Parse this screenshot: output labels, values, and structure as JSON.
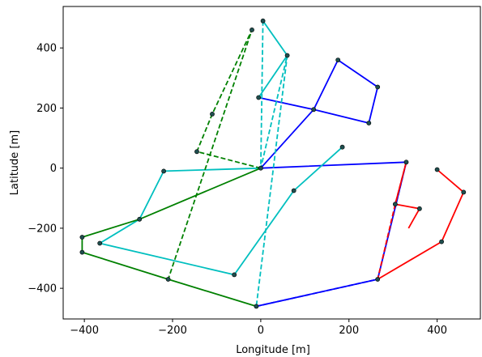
{
  "chart_data": {
    "type": "line",
    "title": "",
    "xlabel": "Longitude [m]",
    "ylabel": "Latitude [m]",
    "xlim": [
      -448,
      498
    ],
    "ylim": [
      -502,
      538
    ],
    "xticks": [
      -400,
      -200,
      0,
      200,
      400
    ],
    "yticks": [
      -400,
      -200,
      0,
      200,
      400
    ],
    "xtick_labels": [
      "−400",
      "−200",
      "0",
      "200",
      "400"
    ],
    "ytick_labels": [
      "−400",
      "−200",
      "0",
      "200",
      "400"
    ],
    "grid": false,
    "series": [
      {
        "color": "#0000ff",
        "dashed": false,
        "points": [
          [
            -5,
            235
          ],
          [
            120,
            195
          ],
          [
            175,
            360
          ],
          [
            265,
            270
          ],
          [
            245,
            150
          ],
          [
            120,
            195
          ],
          [
            0,
            0
          ],
          [
            330,
            20
          ],
          [
            265,
            -370
          ],
          [
            -10,
            -460
          ]
        ]
      },
      {
        "color": "#ff0000",
        "dashed": false,
        "points": [
          [
            330,
            20
          ],
          [
            305,
            -120
          ],
          [
            360,
            -135
          ],
          [
            335,
            -200
          ]
        ]
      },
      {
        "color": "#ff0000",
        "dashed": false,
        "points": [
          [
            400,
            -5
          ],
          [
            460,
            -80
          ],
          [
            410,
            -245
          ],
          [
            265,
            -370
          ]
        ]
      },
      {
        "color": "#0000ff",
        "dashed": true,
        "points": [
          [
            330,
            20
          ],
          [
            265,
            -370
          ],
          [
            -10,
            -460
          ]
        ]
      },
      {
        "color": "#ff0000",
        "dashed": true,
        "points": [
          [
            330,
            20
          ],
          [
            305,
            -120
          ],
          [
            265,
            -370
          ]
        ]
      },
      {
        "color": "#00bfbf",
        "dashed": false,
        "points": [
          [
            185,
            70
          ],
          [
            75,
            -75
          ],
          [
            -60,
            -355
          ],
          [
            -365,
            -250
          ],
          [
            -275,
            -170
          ],
          [
            -220,
            -10
          ],
          [
            0,
            0
          ]
        ]
      },
      {
        "color": "#00bfbf",
        "dashed": false,
        "points": [
          [
            5,
            490
          ],
          [
            60,
            375
          ],
          [
            -5,
            235
          ]
        ]
      },
      {
        "color": "#00bfbf",
        "dashed": true,
        "points": [
          [
            5,
            490
          ],
          [
            0,
            0
          ],
          [
            60,
            375
          ],
          [
            -10,
            -460
          ]
        ]
      },
      {
        "color": "#008000",
        "dashed": false,
        "points": [
          [
            0,
            0
          ],
          [
            -275,
            -170
          ],
          [
            -405,
            -230
          ],
          [
            -405,
            -280
          ],
          [
            -210,
            -370
          ],
          [
            -10,
            -460
          ]
        ]
      },
      {
        "color": "#008000",
        "dashed": true,
        "points": [
          [
            0,
            0
          ],
          [
            -145,
            55
          ],
          [
            -110,
            180
          ],
          [
            -20,
            460
          ],
          [
            -210,
            -370
          ]
        ]
      }
    ],
    "markers": [
      [
        5,
        490
      ],
      [
        -20,
        460
      ],
      [
        60,
        375
      ],
      [
        175,
        360
      ],
      [
        265,
        270
      ],
      [
        -5,
        235
      ],
      [
        120,
        195
      ],
      [
        -110,
        180
      ],
      [
        245,
        150
      ],
      [
        185,
        70
      ],
      [
        -145,
        55
      ],
      [
        330,
        20
      ],
      [
        0,
        0
      ],
      [
        -220,
        -10
      ],
      [
        400,
        -5
      ],
      [
        460,
        -80
      ],
      [
        75,
        -75
      ],
      [
        305,
        -120
      ],
      [
        360,
        -135
      ],
      [
        -275,
        -170
      ],
      [
        -405,
        -230
      ],
      [
        410,
        -245
      ],
      [
        -365,
        -250
      ],
      [
        -405,
        -280
      ],
      [
        -60,
        -355
      ],
      [
        -210,
        -370
      ],
      [
        265,
        -370
      ],
      [
        -10,
        -460
      ]
    ]
  }
}
